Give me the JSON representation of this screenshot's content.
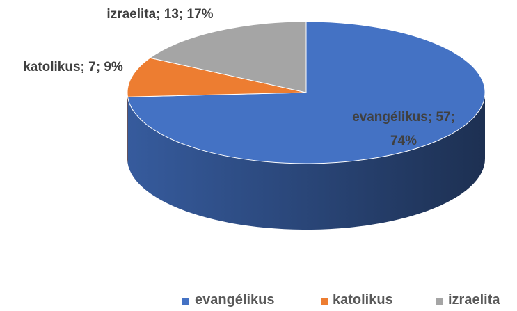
{
  "chart_data": {
    "type": "pie3d",
    "categories": [
      "evangélikus",
      "katolikus",
      "izraelita"
    ],
    "values": [
      57,
      7,
      13
    ],
    "value_labels": [
      "evangélikus; 57; 74%",
      "katolikus; 7; 9%",
      "izraelita; 13; 17%"
    ],
    "colors": [
      "#4472c4",
      "#ed7d31",
      "#a5a5a5"
    ],
    "legend": "bottom"
  }
}
